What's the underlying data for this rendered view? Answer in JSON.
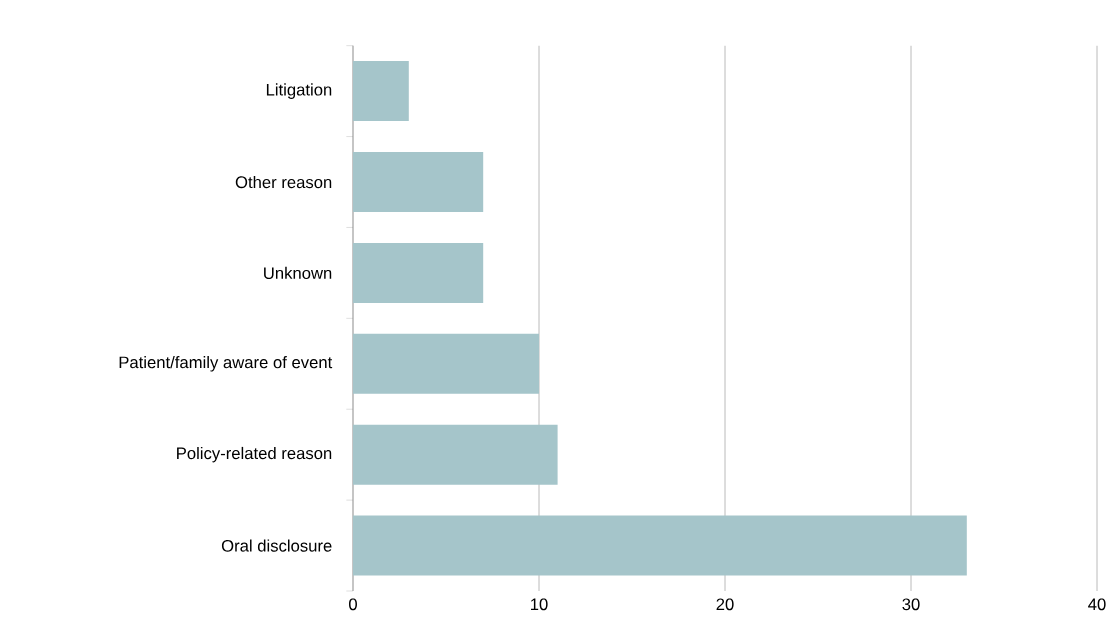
{
  "chart_data": {
    "type": "bar",
    "orientation": "horizontal",
    "categories": [
      "Litigation",
      "Other reason",
      "Unknown",
      "Patient/family aware of event",
      "Policy-related reason",
      "Oral disclosure"
    ],
    "values": [
      3,
      7,
      7,
      10,
      11,
      33
    ],
    "color": "#a5c5ca",
    "xlim": [
      0,
      40
    ],
    "xticks": [
      0,
      10,
      20,
      30,
      40
    ],
    "grid": "x"
  }
}
